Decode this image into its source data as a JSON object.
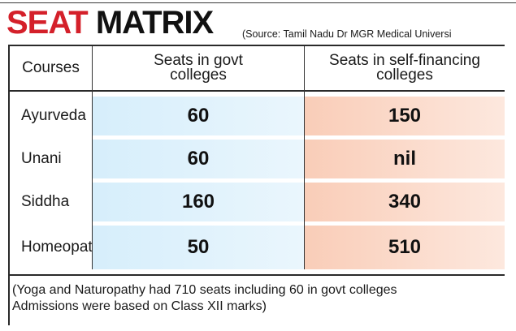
{
  "title": {
    "part1": "SEAT",
    "part2": "MATRIX"
  },
  "source": "(Source: Tamil Nadu Dr MGR Medical Universi",
  "table": {
    "headers": {
      "courses": "Courses",
      "govt": "Seats in govt colleges",
      "self": "Seats in self-financing colleges"
    },
    "rows": [
      {
        "course": "Ayurveda",
        "govt": "60",
        "self": "150"
      },
      {
        "course": "Unani",
        "govt": "60",
        "self": "nil"
      },
      {
        "course": "Siddha",
        "govt": "160",
        "self": "340"
      },
      {
        "course": "Homeopathy",
        "govt": "50",
        "self": "510"
      }
    ]
  },
  "footnote": {
    "line1": "(Yoga and Naturopathy had 710 seats including 60 in govt colleges",
    "line2": "Admissions were based on Class XII marks)"
  },
  "colors": {
    "accent": "#d4202a",
    "govt_fill": "#d6eefb",
    "self_fill": "#f9cdb8"
  }
}
